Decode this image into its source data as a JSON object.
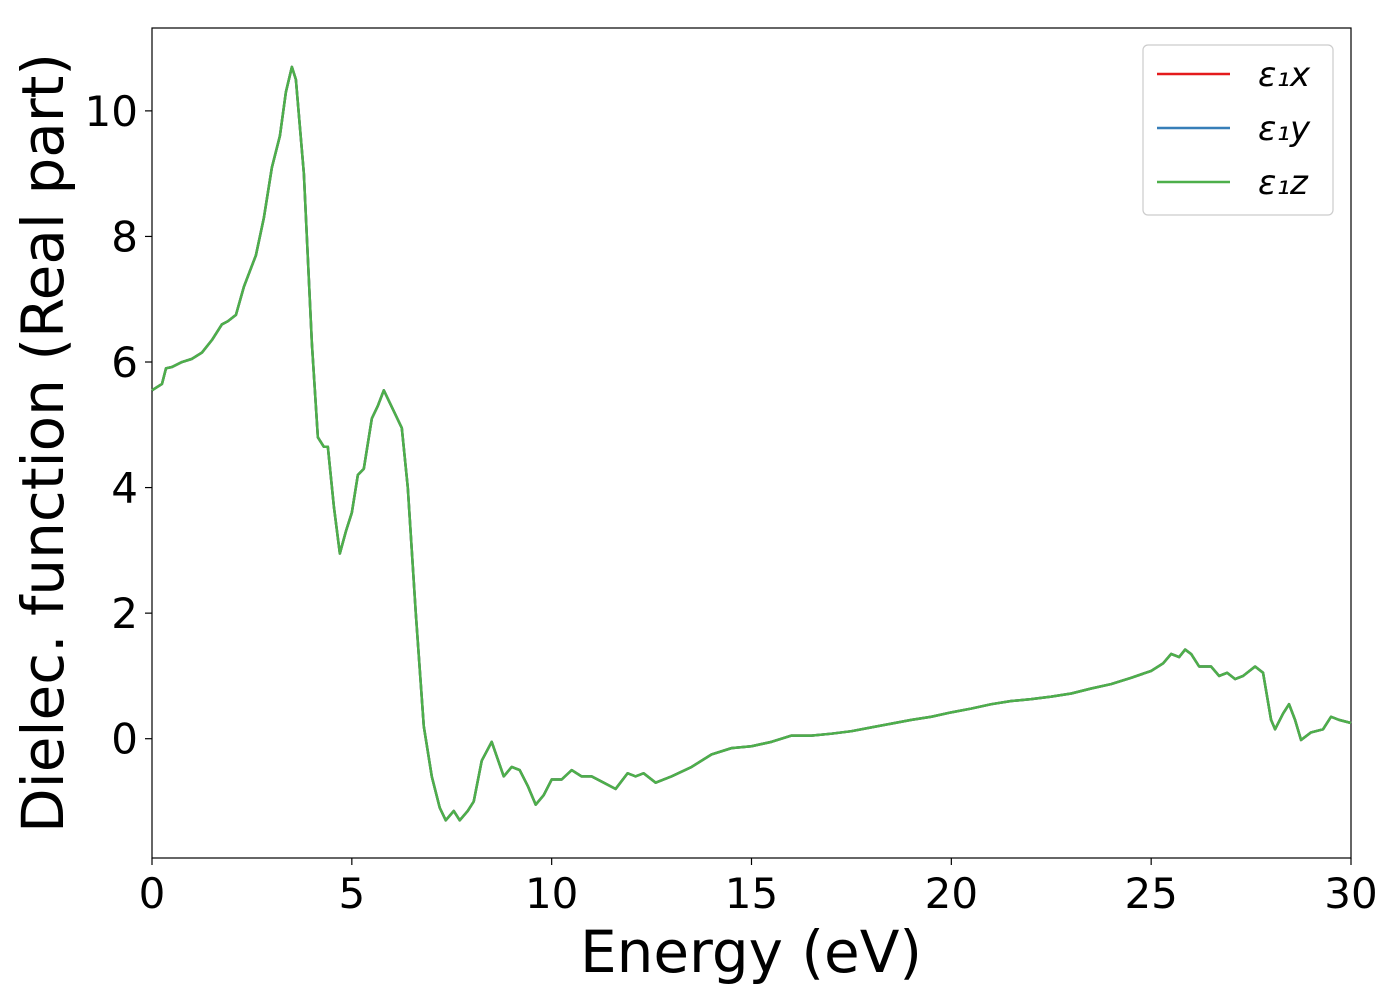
{
  "chart_data": {
    "type": "line",
    "xlabel": "Energy (eV)",
    "ylabel": "Dielec. function (Real part)",
    "xlim": [
      0,
      30
    ],
    "xticks": [
      0,
      5,
      10,
      15,
      20,
      25,
      30
    ],
    "ylim": [
      -1.9,
      11.32
    ],
    "yticks": [
      0,
      2,
      4,
      6,
      8,
      10
    ],
    "legend": "upper right",
    "grid": false,
    "x": [
      0,
      0.25,
      0.35,
      0.5,
      0.75,
      1.0,
      1.25,
      1.5,
      1.75,
      1.9,
      2.1,
      2.3,
      2.6,
      2.8,
      3.0,
      3.2,
      3.35,
      3.5,
      3.6,
      3.8,
      4.0,
      4.15,
      4.3,
      4.4,
      4.55,
      4.7,
      4.85,
      5.0,
      5.15,
      5.3,
      5.5,
      5.65,
      5.8,
      5.95,
      6.1,
      6.25,
      6.4,
      6.6,
      6.8,
      7.0,
      7.2,
      7.35,
      7.55,
      7.7,
      7.9,
      8.05,
      8.25,
      8.5,
      8.8,
      9.0,
      9.2,
      9.4,
      9.6,
      9.8,
      10.0,
      10.25,
      10.5,
      10.75,
      11.0,
      11.3,
      11.6,
      11.9,
      12.1,
      12.3,
      12.6,
      13.0,
      13.5,
      14.0,
      14.5,
      15.0,
      15.5,
      16.0,
      16.5,
      17.0,
      17.5,
      18.0,
      18.5,
      19.0,
      19.5,
      20.0,
      20.5,
      21.0,
      21.5,
      22.0,
      22.5,
      23.0,
      23.5,
      24.0,
      24.5,
      25.0,
      25.3,
      25.5,
      25.7,
      25.85,
      26.0,
      26.2,
      26.5,
      26.7,
      26.9,
      27.1,
      27.3,
      27.6,
      27.8,
      28.0,
      28.1,
      28.3,
      28.45,
      28.6,
      28.75,
      29.0,
      29.3,
      29.5,
      29.7,
      30.0
    ],
    "series": [
      {
        "name": "ε₁x",
        "color": "#e41a1c",
        "values": [
          5.55,
          5.65,
          5.9,
          5.92,
          6.0,
          6.05,
          6.15,
          6.35,
          6.6,
          6.65,
          6.75,
          7.2,
          7.7,
          8.3,
          9.1,
          9.6,
          10.3,
          10.7,
          10.5,
          9.0,
          6.3,
          4.8,
          4.65,
          4.65,
          3.7,
          2.95,
          3.3,
          3.6,
          4.2,
          4.3,
          5.1,
          5.3,
          5.55,
          5.35,
          5.15,
          4.95,
          4.0,
          2.0,
          0.2,
          -0.6,
          -1.1,
          -1.3,
          -1.15,
          -1.3,
          -1.15,
          -1.0,
          -0.35,
          -0.05,
          -0.6,
          -0.45,
          -0.5,
          -0.75,
          -1.05,
          -0.9,
          -0.65,
          -0.65,
          -0.5,
          -0.6,
          -0.6,
          -0.7,
          -0.8,
          -0.55,
          -0.6,
          -0.55,
          -0.7,
          -0.6,
          -0.45,
          -0.25,
          -0.15,
          -0.12,
          -0.05,
          0.05,
          0.05,
          0.08,
          0.12,
          0.18,
          0.24,
          0.3,
          0.35,
          0.42,
          0.48,
          0.55,
          0.6,
          0.63,
          0.67,
          0.72,
          0.8,
          0.87,
          0.97,
          1.08,
          1.2,
          1.35,
          1.3,
          1.42,
          1.35,
          1.15,
          1.15,
          1.0,
          1.05,
          0.95,
          1.0,
          1.15,
          1.05,
          0.3,
          0.15,
          0.4,
          0.55,
          0.3,
          -0.02,
          0.1,
          0.15,
          0.35,
          0.3,
          0.25
        ]
      },
      {
        "name": "ε₁y",
        "color": "#377eb8",
        "values": [
          5.55,
          5.65,
          5.9,
          5.92,
          6.0,
          6.05,
          6.15,
          6.35,
          6.6,
          6.65,
          6.75,
          7.2,
          7.7,
          8.3,
          9.1,
          9.6,
          10.3,
          10.7,
          10.5,
          9.0,
          6.3,
          4.8,
          4.65,
          4.65,
          3.7,
          2.95,
          3.3,
          3.6,
          4.2,
          4.3,
          5.1,
          5.3,
          5.55,
          5.35,
          5.15,
          4.95,
          4.0,
          2.0,
          0.2,
          -0.6,
          -1.1,
          -1.3,
          -1.15,
          -1.3,
          -1.15,
          -1.0,
          -0.35,
          -0.05,
          -0.6,
          -0.45,
          -0.5,
          -0.75,
          -1.05,
          -0.9,
          -0.65,
          -0.65,
          -0.5,
          -0.6,
          -0.6,
          -0.7,
          -0.8,
          -0.55,
          -0.6,
          -0.55,
          -0.7,
          -0.6,
          -0.45,
          -0.25,
          -0.15,
          -0.12,
          -0.05,
          0.05,
          0.05,
          0.08,
          0.12,
          0.18,
          0.24,
          0.3,
          0.35,
          0.42,
          0.48,
          0.55,
          0.6,
          0.63,
          0.67,
          0.72,
          0.8,
          0.87,
          0.97,
          1.08,
          1.2,
          1.35,
          1.3,
          1.42,
          1.35,
          1.15,
          1.15,
          1.0,
          1.05,
          0.95,
          1.0,
          1.15,
          1.05,
          0.3,
          0.15,
          0.4,
          0.55,
          0.3,
          -0.02,
          0.1,
          0.15,
          0.35,
          0.3,
          0.25
        ]
      },
      {
        "name": "ε₁z",
        "color": "#4daf4a",
        "values": [
          5.55,
          5.65,
          5.9,
          5.92,
          6.0,
          6.05,
          6.15,
          6.35,
          6.6,
          6.65,
          6.75,
          7.2,
          7.7,
          8.3,
          9.1,
          9.6,
          10.3,
          10.7,
          10.5,
          9.0,
          6.3,
          4.8,
          4.65,
          4.65,
          3.7,
          2.95,
          3.3,
          3.6,
          4.2,
          4.3,
          5.1,
          5.3,
          5.55,
          5.35,
          5.15,
          4.95,
          4.0,
          2.0,
          0.2,
          -0.6,
          -1.1,
          -1.3,
          -1.15,
          -1.3,
          -1.15,
          -1.0,
          -0.35,
          -0.05,
          -0.6,
          -0.45,
          -0.5,
          -0.75,
          -1.05,
          -0.9,
          -0.65,
          -0.65,
          -0.5,
          -0.6,
          -0.6,
          -0.7,
          -0.8,
          -0.55,
          -0.6,
          -0.55,
          -0.7,
          -0.6,
          -0.45,
          -0.25,
          -0.15,
          -0.12,
          -0.05,
          0.05,
          0.05,
          0.08,
          0.12,
          0.18,
          0.24,
          0.3,
          0.35,
          0.42,
          0.48,
          0.55,
          0.6,
          0.63,
          0.67,
          0.72,
          0.8,
          0.87,
          0.97,
          1.08,
          1.2,
          1.35,
          1.3,
          1.42,
          1.35,
          1.15,
          1.15,
          1.0,
          1.05,
          0.95,
          1.0,
          1.15,
          1.05,
          0.3,
          0.15,
          0.4,
          0.55,
          0.3,
          -0.02,
          0.1,
          0.15,
          0.35,
          0.3,
          0.25
        ]
      }
    ]
  }
}
